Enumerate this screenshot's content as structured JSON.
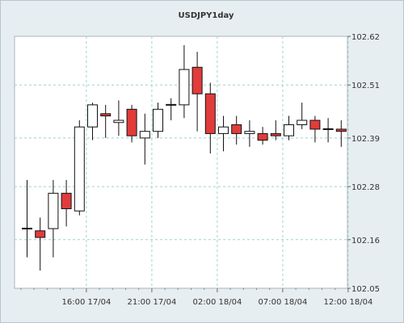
{
  "chart_data": {
    "type": "candlestick",
    "title": "USDJPY1day",
    "x_tick_labels": [
      "16:00 17/04",
      "21:00 17/04",
      "02:00 18/04",
      "07:00 18/04",
      "12:00 18/04"
    ],
    "x_tick_index": [
      5,
      10,
      15,
      20,
      25
    ],
    "y_ticks": [
      "102.05",
      "102.16",
      "102.28",
      "102.39",
      "102.51",
      "102.62"
    ],
    "ylim": [
      102.05,
      102.62
    ],
    "grid": true,
    "colors": {
      "bull": "#ffffff",
      "bear": "#e23b3b",
      "background": "#ffffff",
      "outer": "#e6eef1",
      "grid": "#9fd3cf",
      "wick": "#111111"
    },
    "candles": [
      {
        "o": 102.185,
        "h": 102.295,
        "l": 102.12,
        "c": 102.185
      },
      {
        "o": 102.18,
        "h": 102.21,
        "l": 102.09,
        "c": 102.165
      },
      {
        "o": 102.185,
        "h": 102.295,
        "l": 102.12,
        "c": 102.265
      },
      {
        "o": 102.265,
        "h": 102.295,
        "l": 102.19,
        "c": 102.23
      },
      {
        "o": 102.225,
        "h": 102.43,
        "l": 102.215,
        "c": 102.415
      },
      {
        "o": 102.415,
        "h": 102.47,
        "l": 102.385,
        "c": 102.465
      },
      {
        "o": 102.445,
        "h": 102.465,
        "l": 102.39,
        "c": 102.44
      },
      {
        "o": 102.425,
        "h": 102.475,
        "l": 102.395,
        "c": 102.43
      },
      {
        "o": 102.455,
        "h": 102.465,
        "l": 102.38,
        "c": 102.395
      },
      {
        "o": 102.39,
        "h": 102.445,
        "l": 102.33,
        "c": 102.405
      },
      {
        "o": 102.405,
        "h": 102.47,
        "l": 102.39,
        "c": 102.455
      },
      {
        "o": 102.465,
        "h": 102.48,
        "l": 102.43,
        "c": 102.465
      },
      {
        "o": 102.465,
        "h": 102.6,
        "l": 102.435,
        "c": 102.545
      },
      {
        "o": 102.55,
        "h": 102.585,
        "l": 102.405,
        "c": 102.49
      },
      {
        "o": 102.49,
        "h": 102.515,
        "l": 102.355,
        "c": 102.4
      },
      {
        "o": 102.4,
        "h": 102.44,
        "l": 102.36,
        "c": 102.415
      },
      {
        "o": 102.42,
        "h": 102.44,
        "l": 102.375,
        "c": 102.4
      },
      {
        "o": 102.4,
        "h": 102.43,
        "l": 102.37,
        "c": 102.405
      },
      {
        "o": 102.4,
        "h": 102.415,
        "l": 102.375,
        "c": 102.385
      },
      {
        "o": 102.4,
        "h": 102.43,
        "l": 102.385,
        "c": 102.395
      },
      {
        "o": 102.395,
        "h": 102.44,
        "l": 102.385,
        "c": 102.42
      },
      {
        "o": 102.42,
        "h": 102.47,
        "l": 102.41,
        "c": 102.43
      },
      {
        "o": 102.43,
        "h": 102.44,
        "l": 102.38,
        "c": 102.41
      },
      {
        "o": 102.41,
        "h": 102.435,
        "l": 102.38,
        "c": 102.41
      },
      {
        "o": 102.41,
        "h": 102.43,
        "l": 102.37,
        "c": 102.405
      }
    ]
  }
}
